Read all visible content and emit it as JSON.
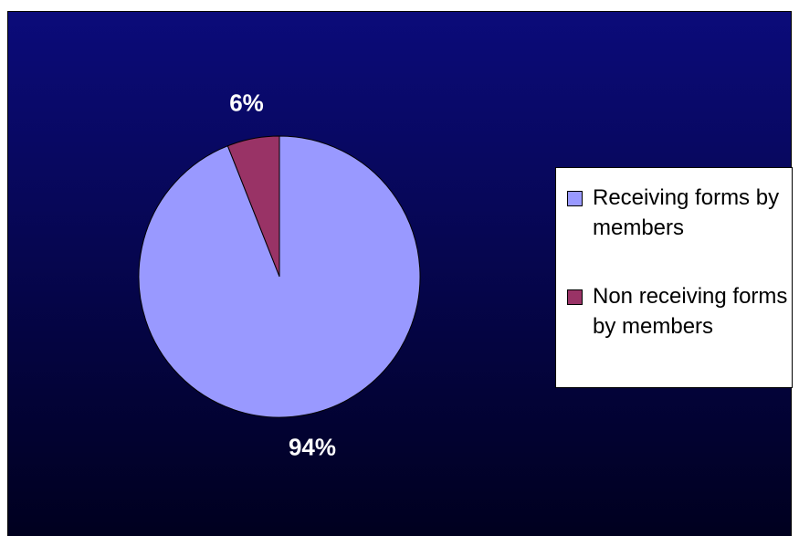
{
  "chart_data": {
    "type": "pie",
    "title": "",
    "slices": [
      {
        "label": "Receiving forms by members",
        "value": 94,
        "value_label": "94%",
        "color": "#9999FF"
      },
      {
        "label": "Non receiving forms by members",
        "value": 6,
        "value_label": "6%",
        "color": "#993366"
      }
    ],
    "start_angle_deg": 0,
    "direction": "clockwise",
    "legend_position": "right",
    "background_gradient": [
      "#0B0B7A",
      "#00001F"
    ]
  }
}
